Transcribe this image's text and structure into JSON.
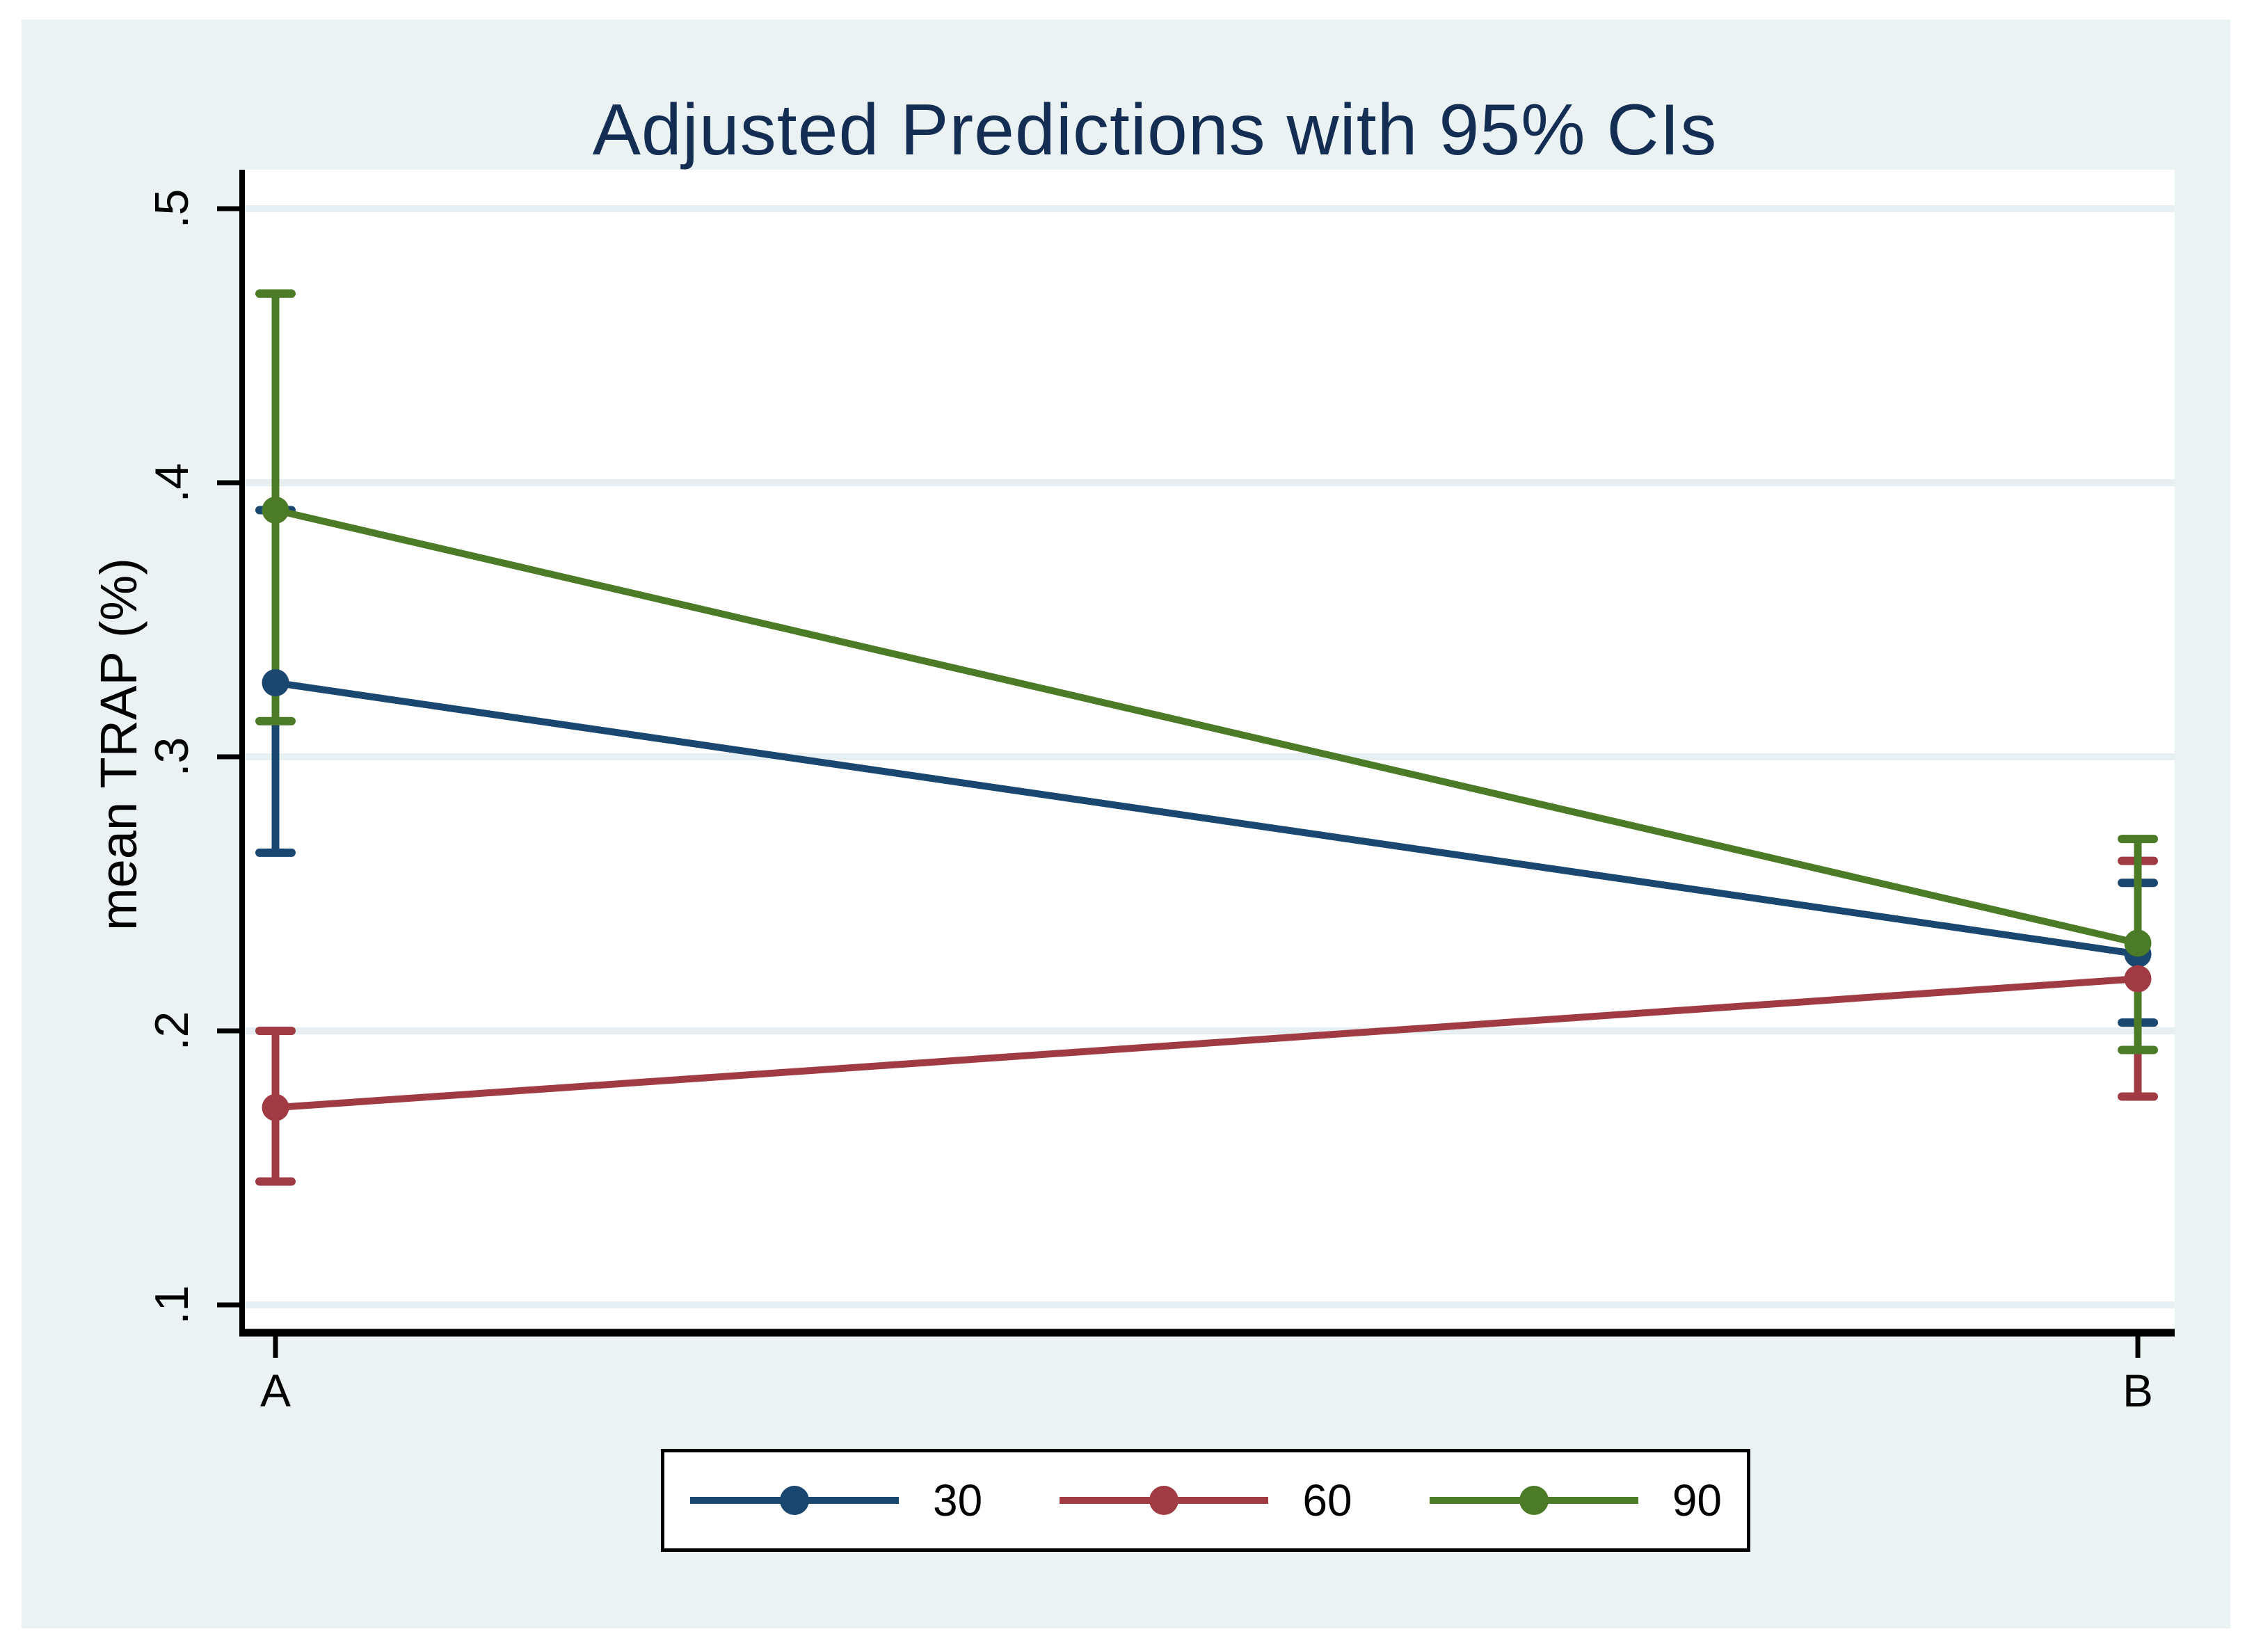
{
  "title": "Adjusted Predictions with 95% CIs",
  "chart_data": {
    "type": "line",
    "title": "Adjusted Predictions with 95% CIs",
    "xlabel": "",
    "ylabel": "mean TRAP (%)",
    "categories": [
      "A",
      "B"
    ],
    "y_ticks": [
      {
        "label": ".1",
        "value": 0.1
      },
      {
        "label": ".2",
        "value": 0.2
      },
      {
        "label": ".3",
        "value": 0.3
      },
      {
        "label": ".4",
        "value": 0.4
      },
      {
        "label": ".5",
        "value": 0.5
      }
    ],
    "ylim": [
      0.09,
      0.514
    ],
    "grid": true,
    "legend_position": "bottom-center",
    "error_bars": "95% CI",
    "series": [
      {
        "name": "30",
        "color": "#1A476F",
        "values": [
          0.327,
          0.228
        ],
        "ci_low": [
          0.265,
          0.203
        ],
        "ci_high": [
          0.39,
          0.254
        ]
      },
      {
        "name": "60",
        "color": "#A03B43",
        "values": [
          0.172,
          0.219
        ],
        "ci_low": [
          0.145,
          0.176
        ],
        "ci_high": [
          0.2,
          0.262
        ]
      },
      {
        "name": "90",
        "color": "#4C7B28",
        "values": [
          0.39,
          0.232
        ],
        "ci_low": [
          0.313,
          0.193
        ],
        "ci_high": [
          0.469,
          0.27
        ]
      }
    ]
  },
  "colors": {
    "page_background": "#ffffff",
    "graph_background": "#EAF2F3",
    "plot_background": "#ffffff",
    "gridline": "#E6EFF1",
    "axis": "#000000",
    "title_text": "#132E52",
    "tick_text": "#000000"
  }
}
